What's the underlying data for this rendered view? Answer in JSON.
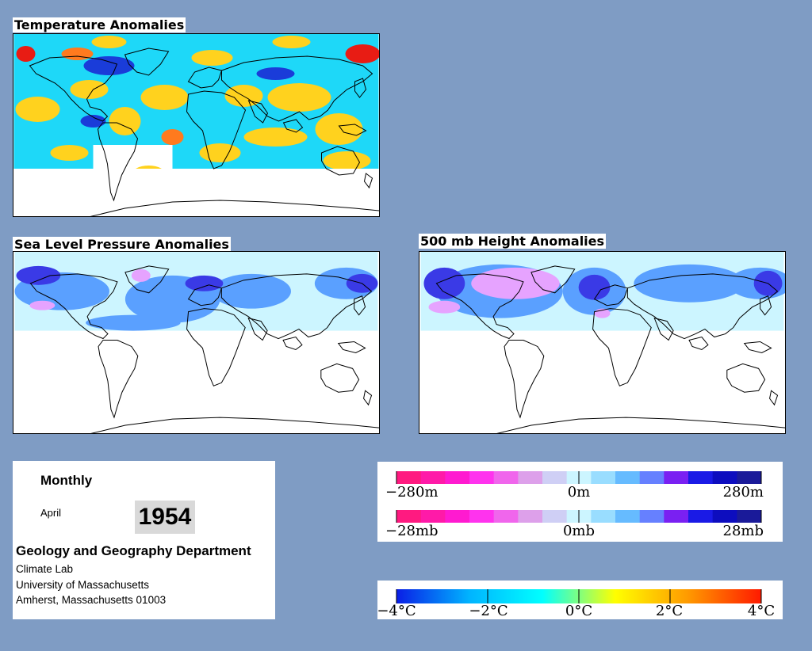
{
  "background_color": "#7f9cc4",
  "panels": {
    "temperature": {
      "title": "Temperature Anomalies"
    },
    "sea_level_pressure": {
      "title": "Sea Level Pressure Anomalies"
    },
    "height_500mb": {
      "title": "500 mb Height Anomalies"
    }
  },
  "info": {
    "period": "Monthly",
    "month": "April",
    "year": "1954",
    "department": "Geology and Geography Department",
    "lab": "Climate Lab",
    "university": "University of Massachusetts",
    "address": "Amherst, Massachusetts 01003"
  },
  "legends": {
    "height": {
      "labels": [
        "−280m",
        "0m",
        "280m"
      ],
      "colors": [
        "#ff1a80",
        "#ff1aa8",
        "#ff1ad0",
        "#ff33ee",
        "#f066ec",
        "#dda0ea",
        "#cfcff5",
        "#ccf5ff",
        "#99ddff",
        "#66bbff",
        "#6680ff",
        "#7a20f2",
        "#1a1ae6",
        "#0d0dbf",
        "#1a1a99"
      ]
    },
    "pressure": {
      "labels": [
        "−28mb",
        "0mb",
        "28mb"
      ],
      "colors": [
        "#ff1a80",
        "#ff1aa8",
        "#ff1ad0",
        "#ff33ee",
        "#f066ec",
        "#dda0ea",
        "#cfcff5",
        "#ccf5ff",
        "#99ddff",
        "#66bbff",
        "#6680ff",
        "#7a20f2",
        "#1a1ae6",
        "#0d0dbf",
        "#1a1a99"
      ]
    },
    "temperature": {
      "labels": [
        "−4°C",
        "−2°C",
        "0°C",
        "2°C",
        "4°C"
      ],
      "gradient": [
        "#0a1ee6",
        "#00b4ff",
        "#00ffff",
        "#ffff00",
        "#ff9900",
        "#ff1a00"
      ]
    }
  },
  "palette": {
    "land_outline": "#000000",
    "temp_cold": "#1a3cd9",
    "temp_cool": "#1ed8f8",
    "temp_warm": "#ffd21e",
    "temp_hot": "#ff7a1e",
    "temp_extreme": "#e81c14",
    "neg_anom": "#5aa0ff",
    "neg_strong": "#3a3ae6",
    "neutral": "#ccf5ff",
    "pos_anom": "#e6a3ff"
  }
}
